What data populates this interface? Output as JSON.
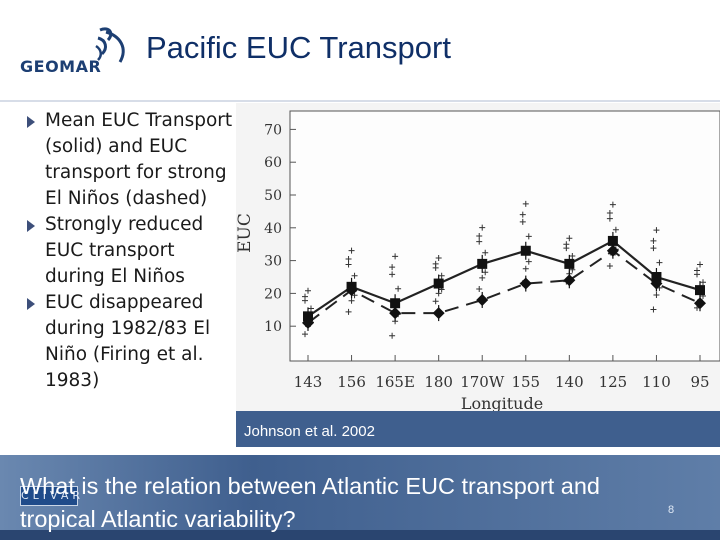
{
  "header": {
    "logo_text": "GEOMAR",
    "title": "Pacific EUC Transport"
  },
  "bullets": [
    {
      "text": "Mean EUC Transport (solid) and EUC transport for strong El Niños (dashed)"
    },
    {
      "text": "Strongly reduced EUC transport during El Niños"
    },
    {
      "text": "EUC disappeared during 1982/83 El Niño (Firing et al. 1983)"
    }
  ],
  "figure": {
    "caption": "Johnson et al. 2002"
  },
  "chart_data": {
    "type": "line",
    "xlabel": "Longitude",
    "ylabel": "EUC",
    "x_tick_labels": [
      "143",
      "156",
      "165E",
      "180",
      "170W",
      "155",
      "140",
      "125",
      "110",
      "95"
    ],
    "y_tick_labels": [
      "10",
      "20",
      "30",
      "40",
      "50",
      "60",
      "70"
    ],
    "ylim": [
      0,
      75
    ],
    "series": [
      {
        "name": "Mean EUC transport",
        "style": "solid",
        "x": [
          "143",
          "156",
          "165E",
          "180",
          "170W",
          "155",
          "140",
          "125",
          "110",
          "95"
        ],
        "values": [
          13,
          22,
          17,
          23,
          29,
          33,
          29,
          36,
          25,
          21
        ]
      },
      {
        "name": "EUC transport for strong El Niños",
        "style": "dashed",
        "x": [
          "143",
          "156",
          "165E",
          "180",
          "170W",
          "155",
          "140",
          "125",
          "110",
          "95"
        ],
        "values": [
          11,
          21,
          14,
          14,
          18,
          23,
          24,
          33,
          23,
          17
        ]
      }
    ]
  },
  "footer": {
    "question": "What is the relation between Atlantic EUC transport and tropical Atlantic variability?",
    "clivar_text": "CLIVAR",
    "page_number": "8"
  },
  "colors": {
    "title": "#0f2f67",
    "footer_band": "#4f6f9c",
    "bullet_arrow": "#3d4f7a"
  }
}
